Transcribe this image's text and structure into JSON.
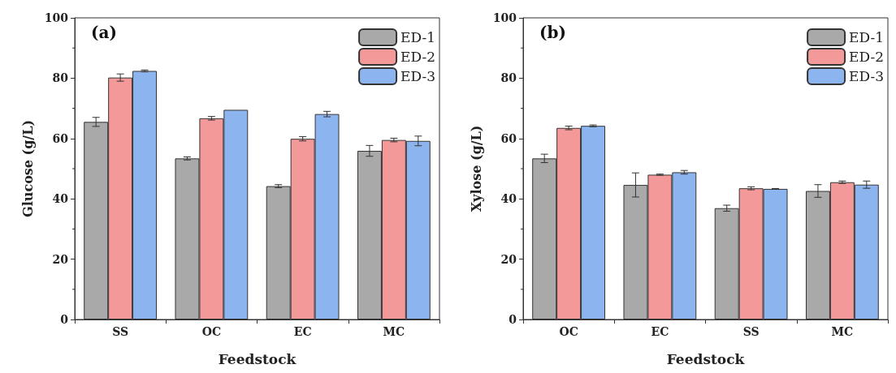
{
  "chart_data": [
    {
      "type": "bar",
      "title": null,
      "annotations": [
        "(a)"
      ],
      "xlabel": "Feedstock",
      "ylabel": "Glucose (g/L)",
      "categories": [
        "SS",
        "OC",
        "EC",
        "MC"
      ],
      "ylim": [
        0,
        100
      ],
      "yticks": [
        0,
        20,
        40,
        60,
        80,
        100
      ],
      "legend": "top right",
      "grid": false,
      "series": [
        {
          "name": "ED-1",
          "color": "#a9a9a9",
          "values": [
            65.5,
            53.4,
            44.2,
            55.9
          ],
          "errors": [
            1.5,
            0.5,
            0.5,
            1.8
          ]
        },
        {
          "name": "ED-2",
          "color": "#f4999a",
          "values": [
            80.2,
            66.7,
            59.9,
            59.5
          ],
          "errors": [
            1.2,
            0.6,
            0.7,
            0.6
          ]
        },
        {
          "name": "ED-3",
          "color": "#8cb4ee",
          "values": [
            82.4,
            69.5,
            68.1,
            59.2
          ],
          "errors": [
            0.3,
            null,
            0.9,
            1.6
          ]
        }
      ]
    },
    {
      "type": "bar",
      "annotations": [
        "(b)"
      ],
      "xlabel": "Feedstock",
      "ylabel": "Xylose (g/L)",
      "categories": [
        "OC",
        "EC",
        "SS",
        "MC"
      ],
      "ylim": [
        0,
        100
      ],
      "yticks": [
        0,
        20,
        40,
        60,
        80,
        100
      ],
      "legend": "top right",
      "grid": false,
      "series": [
        {
          "name": "ED-1",
          "color": "#a9a9a9",
          "values": [
            53.4,
            44.6,
            36.9,
            42.6
          ],
          "errors": [
            1.4,
            4.0,
            1.0,
            2.1
          ]
        },
        {
          "name": "ED-2",
          "color": "#f4999a",
          "values": [
            63.5,
            48.0,
            43.5,
            45.5
          ],
          "errors": [
            0.6,
            0.2,
            0.5,
            0.4
          ]
        },
        {
          "name": "ED-3",
          "color": "#8cb4ee",
          "values": [
            64.2,
            48.8,
            43.3,
            44.7
          ],
          "errors": [
            0.3,
            0.6,
            0.1,
            1.2
          ]
        }
      ]
    }
  ]
}
